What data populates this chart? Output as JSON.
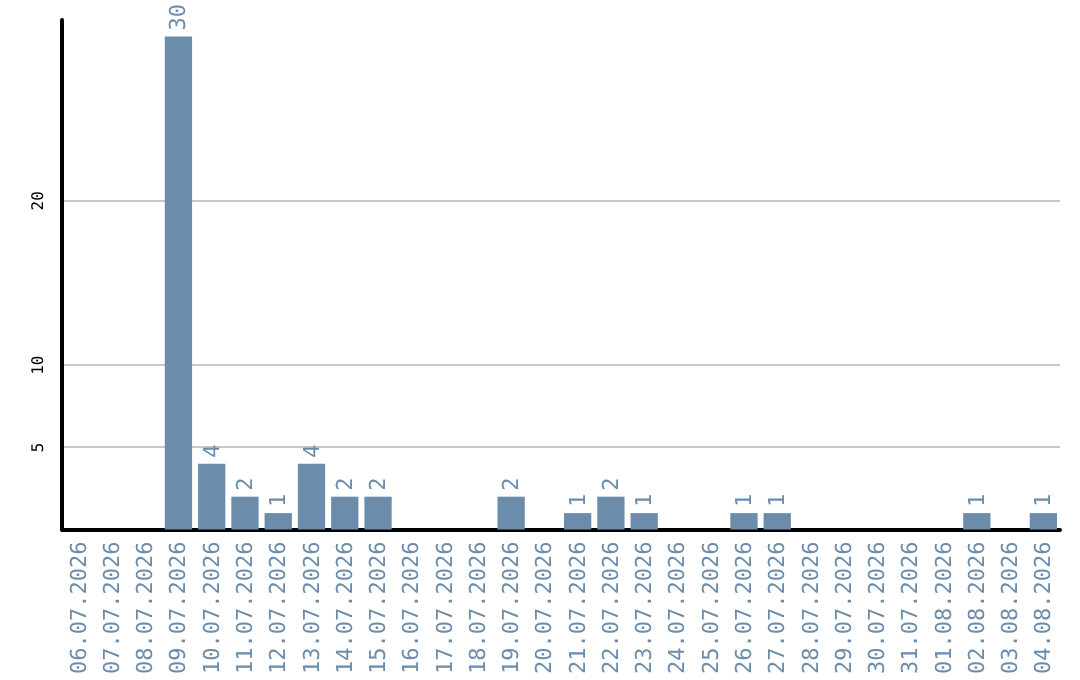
{
  "chart_data": {
    "type": "bar",
    "categories": [
      "06.07.2026",
      "07.07.2026",
      "08.07.2026",
      "09.07.2026",
      "10.07.2026",
      "11.07.2026",
      "12.07.2026",
      "13.07.2026",
      "14.07.2026",
      "15.07.2026",
      "16.07.2026",
      "17.07.2026",
      "18.07.2026",
      "19.07.2026",
      "20.07.2026",
      "21.07.2026",
      "22.07.2026",
      "23.07.2026",
      "24.07.2026",
      "25.07.2026",
      "26.07.2026",
      "27.07.2026",
      "28.07.2026",
      "29.07.2026",
      "30.07.2026",
      "31.07.2026",
      "01.08.2026",
      "02.08.2026",
      "03.08.2026",
      "04.08.2026"
    ],
    "values": [
      0,
      0,
      0,
      30,
      4,
      2,
      1,
      4,
      2,
      2,
      0,
      0,
      0,
      2,
      0,
      1,
      2,
      1,
      0,
      0,
      1,
      1,
      0,
      0,
      0,
      0,
      0,
      1,
      0,
      1
    ],
    "value_labels": [
      null,
      null,
      null,
      "30",
      "4",
      "2",
      "1",
      "4",
      "2",
      "2",
      null,
      null,
      null,
      "2",
      null,
      "1",
      "2",
      "1",
      null,
      null,
      "1",
      "1",
      null,
      null,
      null,
      null,
      null,
      "1",
      null,
      "1"
    ],
    "color": "#6b8cab",
    "ylim": [
      0,
      31
    ],
    "yticks": [
      5,
      10,
      20
    ],
    "grid": "y"
  }
}
